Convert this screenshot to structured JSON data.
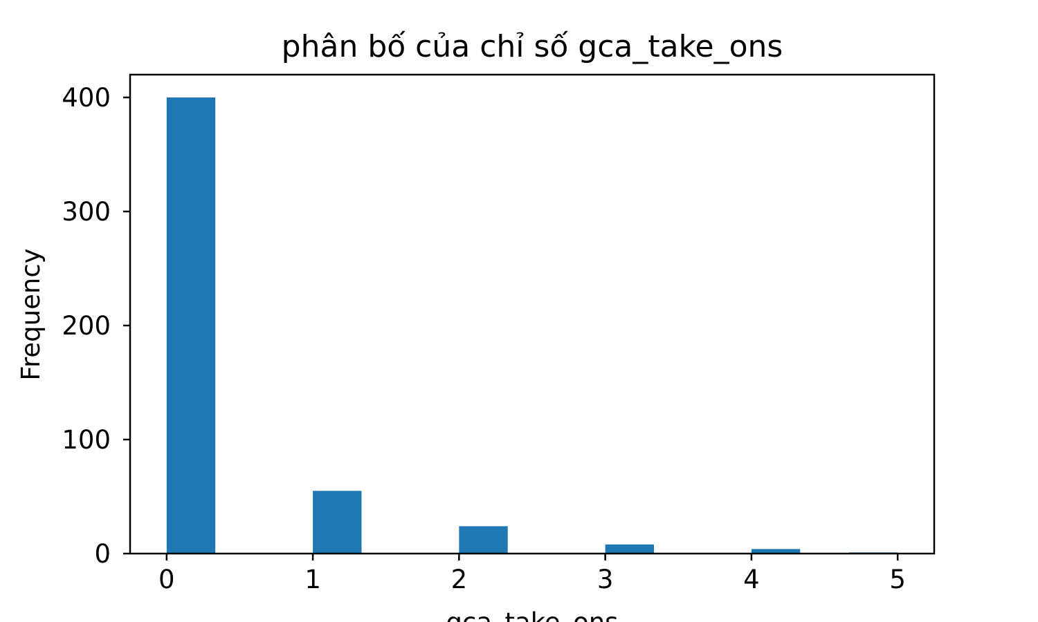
{
  "chart_data": {
    "type": "bar",
    "title": "phân bố của chỉ số gca_take_ons",
    "xlabel": "gca_take_ons",
    "ylabel": "Frequency",
    "bar_color": "#1f77b4",
    "xlim": [
      -0.25,
      5.25
    ],
    "ylim": [
      0,
      420
    ],
    "x_ticks": [
      0,
      1,
      2,
      3,
      4,
      5
    ],
    "y_ticks": [
      0,
      100,
      200,
      300,
      400
    ],
    "bins": [
      {
        "x0": 0.0,
        "x1": 0.333,
        "value": 400
      },
      {
        "x0": 1.0,
        "x1": 1.333,
        "value": 55
      },
      {
        "x0": 2.0,
        "x1": 2.333,
        "value": 24
      },
      {
        "x0": 3.0,
        "x1": 3.333,
        "value": 8
      },
      {
        "x0": 4.0,
        "x1": 4.333,
        "value": 4
      },
      {
        "x0": 4.667,
        "x1": 5.0,
        "value": 1
      }
    ],
    "grid": false,
    "legend": "none"
  }
}
